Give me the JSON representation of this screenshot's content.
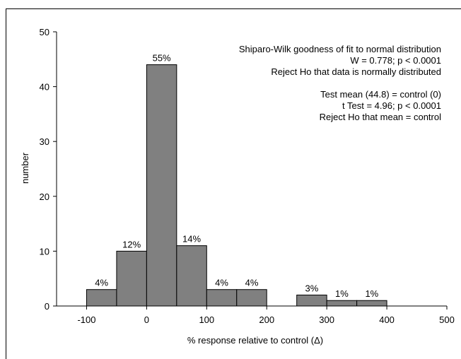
{
  "chart_data": {
    "type": "bar",
    "xlabel": "% response relative to control (Δ)",
    "ylabel": "number",
    "xlim": [
      -150,
      500
    ],
    "ylim": [
      0,
      50
    ],
    "x_ticks": [
      -100,
      0,
      100,
      200,
      300,
      400,
      500
    ],
    "y_ticks": [
      0,
      10,
      20,
      30,
      40,
      50
    ],
    "grid": false,
    "bar_color": "#808080",
    "bins": [
      {
        "start": -100,
        "end": -50,
        "value": 3,
        "label": "4%"
      },
      {
        "start": -50,
        "end": 0,
        "value": 10,
        "label": "12%"
      },
      {
        "start": 0,
        "end": 50,
        "value": 44,
        "label": "55%"
      },
      {
        "start": 50,
        "end": 100,
        "value": 11,
        "label": "14%"
      },
      {
        "start": 100,
        "end": 150,
        "value": 3,
        "label": "4%"
      },
      {
        "start": 150,
        "end": 200,
        "value": 3,
        "label": "4%"
      },
      {
        "start": 250,
        "end": 300,
        "value": 2,
        "label": "3%"
      },
      {
        "start": 300,
        "end": 350,
        "value": 1,
        "label": "1%"
      },
      {
        "start": 350,
        "end": 400,
        "value": 1,
        "label": "1%"
      }
    ],
    "annotations": [
      "Shiparo-Wilk goodness of fit to normal distribution",
      "W = 0.778; p < 0.0001",
      "Reject Ho that data is normally distributed",
      "",
      "Test mean (44.8) = control (0)",
      "t Test = 4.96; p < 0.0001",
      "Reject Ho that mean = control"
    ]
  }
}
